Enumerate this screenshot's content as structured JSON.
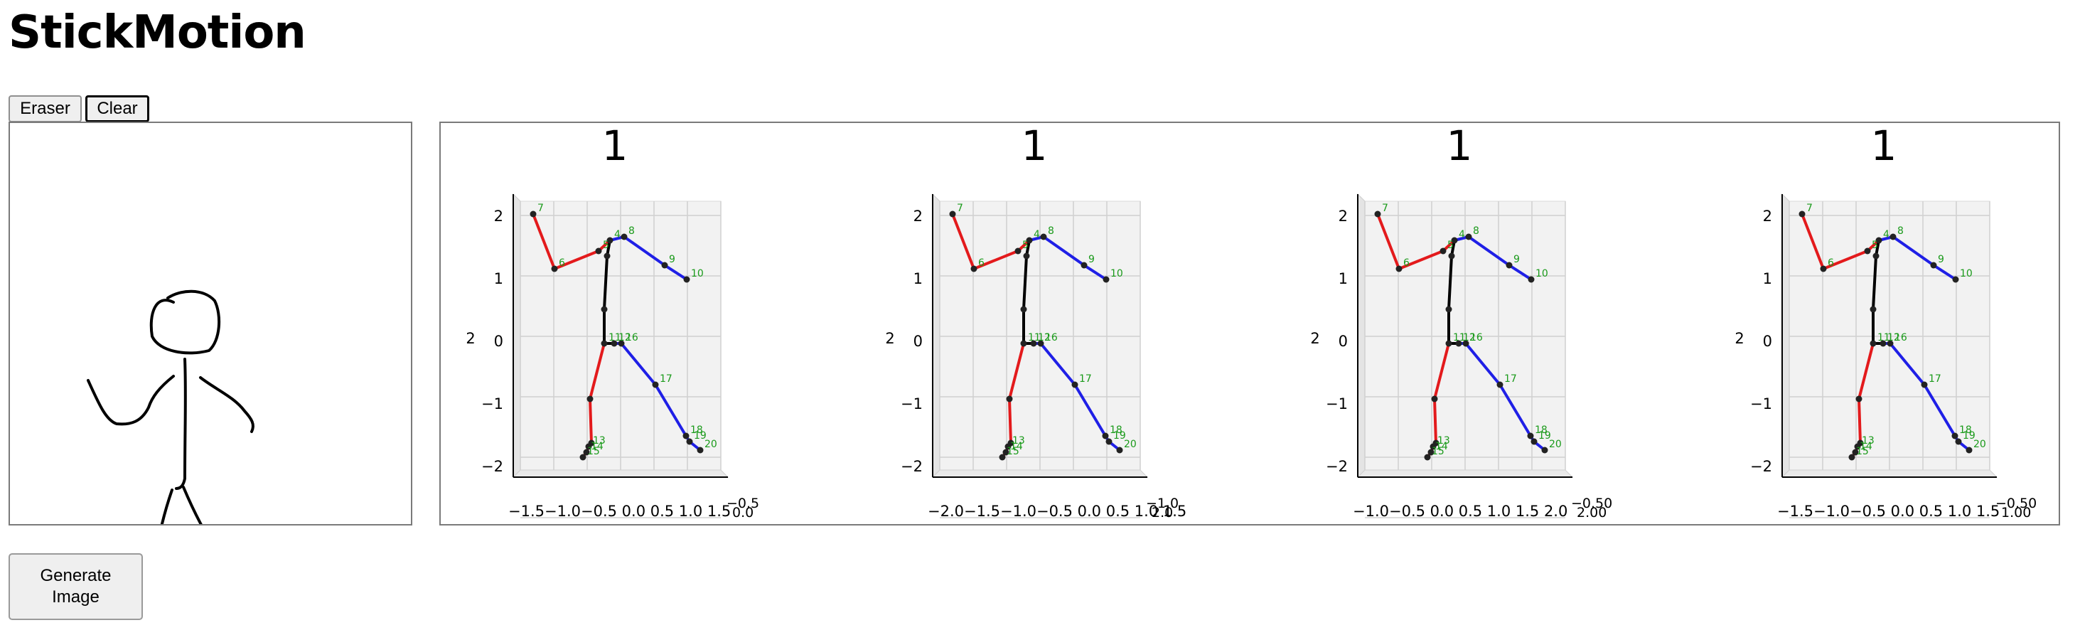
{
  "app": {
    "title": "StickMotion"
  },
  "toolbar": {
    "eraser_label": "Eraser",
    "clear_label": "Clear"
  },
  "generate": {
    "line1": "Generate",
    "line2": "Image"
  },
  "frames": [
    {
      "title": "1",
      "zlabel": "2",
      "zticks": [
        "2",
        "1",
        "0",
        "−1",
        "−2"
      ],
      "xticks": "−1.5−1.0−0.5 0.0  0.5  1.0  1.5",
      "yticks_a": "−0.5",
      "yticks_b": "0.0"
    },
    {
      "title": "1",
      "zlabel": "2",
      "zticks": [
        "2",
        "1",
        "0",
        "−1",
        "−2"
      ],
      "xticks": "−2.0−1.5−1.0−0.5 0.0  0.5  1.0  1.5",
      "yticks_a": "−1.0",
      "yticks_b": "2.0"
    },
    {
      "title": "1",
      "zlabel": "2",
      "zticks": [
        "2",
        "1",
        "0",
        "−1",
        "−2"
      ],
      "xticks": "−1.0−0.5 0.0  0.5  1.0  1.5  2.0",
      "yticks_a": "−0.50",
      "yticks_b": "2.00"
    },
    {
      "title": "1",
      "zlabel": "2",
      "zticks": [
        "2",
        "1",
        "0",
        "−1",
        "−2"
      ],
      "xticks": "−1.5−1.0−0.5 0.0  0.5  1.0  1.5",
      "yticks_a": "−0.50",
      "yticks_b": "1.00"
    }
  ],
  "skeleton": {
    "left_color": "#e31a1c",
    "right_color": "#1f1fe6",
    "spine_color": "#000000",
    "label_color": "#1a9a1a",
    "joint_labels": [
      "4",
      "5",
      "6",
      "7",
      "8",
      "9",
      "10",
      "11",
      "12",
      "13",
      "14",
      "15",
      "16",
      "17",
      "18",
      "19",
      "20"
    ]
  }
}
